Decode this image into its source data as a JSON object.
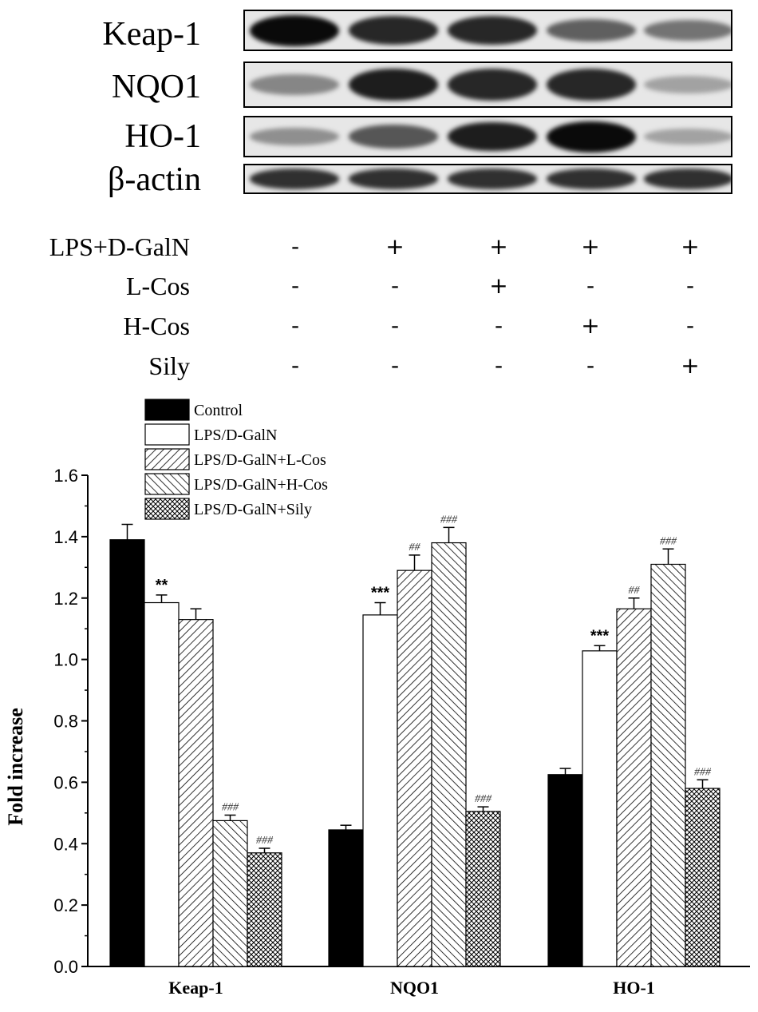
{
  "western_blot": {
    "rows": [
      {
        "label": "Keap-1",
        "intensity": [
          1.0,
          0.85,
          0.85,
          0.55,
          0.45
        ]
      },
      {
        "label": "NQO1",
        "intensity": [
          0.35,
          0.9,
          0.85,
          0.85,
          0.2
        ]
      },
      {
        "label": "HO-1",
        "intensity": [
          0.3,
          0.6,
          0.9,
          1.0,
          0.2
        ]
      },
      {
        "label": "β-actin",
        "intensity": [
          0.8,
          0.8,
          0.8,
          0.8,
          0.8
        ]
      }
    ]
  },
  "treatments": [
    {
      "label": "LPS+D-GalN",
      "signs": [
        "-",
        "+",
        "+",
        "+",
        "+"
      ]
    },
    {
      "label": "L-Cos",
      "signs": [
        "-",
        "-",
        "+",
        "-",
        "-"
      ]
    },
    {
      "label": "H-Cos",
      "signs": [
        "-",
        "-",
        "-",
        "+",
        "-"
      ]
    },
    {
      "label": "Sily",
      "signs": [
        "-",
        "-",
        "-",
        "-",
        "+"
      ]
    }
  ],
  "chart_data": {
    "type": "bar",
    "categories": [
      "Keap-1",
      "NQO1",
      "HO-1"
    ],
    "ylabel": "Fold increase",
    "xlabel": "",
    "ylim": [
      0,
      1.6
    ],
    "yticks": [
      "0.0",
      "0.2",
      "0.4",
      "0.6",
      "0.8",
      "1.0",
      "1.2",
      "1.4",
      "1.6"
    ],
    "legend_position": "top-left",
    "series": [
      {
        "name": "Control",
        "pattern": "solid-black",
        "values": [
          1.39,
          0.445,
          0.625
        ],
        "errors": [
          0.05,
          0.015,
          0.02
        ],
        "annotations": [
          "",
          "",
          ""
        ]
      },
      {
        "name": "LPS/D-GalN",
        "pattern": "white",
        "values": [
          1.185,
          1.145,
          1.028
        ],
        "errors": [
          0.025,
          0.04,
          0.017
        ],
        "annotations": [
          "**",
          "***",
          "***"
        ]
      },
      {
        "name": "LPS/D-GalN+L-Cos",
        "pattern": "diagonal-right",
        "values": [
          1.13,
          1.29,
          1.165
        ],
        "errors": [
          0.035,
          0.05,
          0.035
        ],
        "annotations": [
          "",
          "##",
          "##"
        ]
      },
      {
        "name": "LPS/D-GalN+H-Cos",
        "pattern": "diagonal-left",
        "values": [
          0.475,
          1.38,
          1.31
        ],
        "errors": [
          0.018,
          0.05,
          0.05
        ],
        "annotations": [
          "###",
          "###",
          "###"
        ]
      },
      {
        "name": "LPS/D-GalN+Sily",
        "pattern": "crosshatch",
        "values": [
          0.37,
          0.505,
          0.58
        ],
        "errors": [
          0.015,
          0.015,
          0.028
        ],
        "annotations": [
          "###",
          "###",
          "###"
        ]
      }
    ]
  }
}
